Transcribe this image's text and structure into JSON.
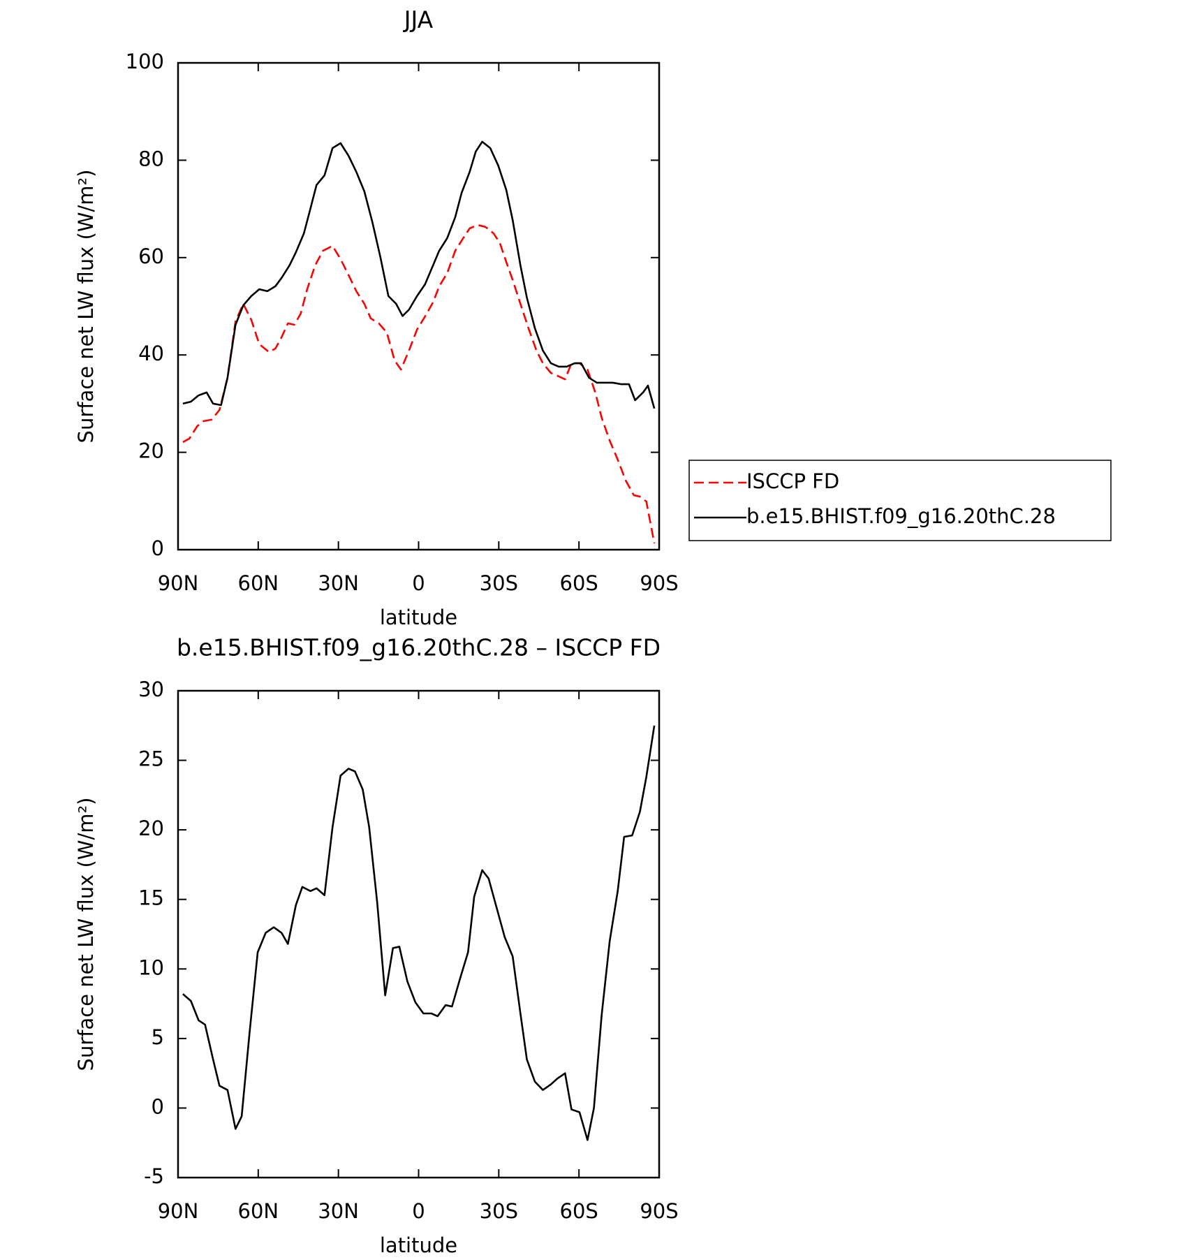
{
  "chart_data": [
    {
      "type": "line",
      "title": "JJA",
      "xlabel": "latitude",
      "ylabel": "Surface net LW flux (W/m²)",
      "xlim": [
        90,
        -90
      ],
      "ylim": [
        0,
        100
      ],
      "xticks": [
        {
          "value": 90,
          "label": "90N"
        },
        {
          "value": 60,
          "label": "60N"
        },
        {
          "value": 30,
          "label": "30N"
        },
        0,
        {
          "value": -30,
          "label": "30S"
        },
        {
          "value": -60,
          "label": "60S"
        },
        {
          "value": -90,
          "label": "90S"
        }
      ],
      "yticks": [
        0,
        20,
        40,
        60,
        80,
        100
      ],
      "legend": "outside right",
      "series": [
        {
          "name": "ISCCP FD",
          "color": "#ff0000",
          "linestyle": "dashed",
          "x": [
            88.2,
            85.8,
            82.8,
            80.5,
            77.5,
            74.5,
            71.5,
            68.5,
            65.6,
            62.6,
            59.6,
            56.0,
            53.6,
            51.3,
            48.9,
            46.5,
            44.1,
            41.7,
            38.7,
            35.8,
            32.2,
            29.2,
            26.2,
            23.3,
            20.3,
            17.9,
            14.9,
            11.9,
            9.0,
            6.6,
            3.6,
            0.6,
            -2.4,
            -5.4,
            -7.7,
            -10.7,
            -13.7,
            -16.7,
            -19.1,
            -22.1,
            -25.0,
            -28.0,
            -30.4,
            -32.8,
            -35.2,
            -38.1,
            -41.1,
            -44.1,
            -46.5,
            -49.5,
            -52.4,
            -54.8,
            -57.2,
            -60.2,
            -63.2,
            -66.1,
            -68.5,
            -71.5,
            -74.5,
            -77.5,
            -80.5,
            -82.8,
            -85.2,
            -88.2
          ],
          "values": [
            22.1,
            22.8,
            25.4,
            26.4,
            26.7,
            28.7,
            35.3,
            46.9,
            50.5,
            47.2,
            42.2,
            40.6,
            41.3,
            43.6,
            46.5,
            46.2,
            48.5,
            53.5,
            58.4,
            61.4,
            62.4,
            59.7,
            56.4,
            53.1,
            50.5,
            47.5,
            46.5,
            44.6,
            38.9,
            37.0,
            40.9,
            45.2,
            47.9,
            50.8,
            54.1,
            56.8,
            61.4,
            64.0,
            66.0,
            66.7,
            66.3,
            65.0,
            63.0,
            59.1,
            55.4,
            50.5,
            45.5,
            40.9,
            38.3,
            36.3,
            35.6,
            35.0,
            38.3,
            38.3,
            37.0,
            32.3,
            27.1,
            22.4,
            18.5,
            14.2,
            11.2,
            10.9,
            9.9,
            1.3
          ]
        },
        {
          "name": "b.e15.BHIST.f09_g16.20thC.28",
          "color": "#000000",
          "linestyle": "solid",
          "x": [
            88.2,
            85.2,
            82.3,
            79.3,
            76.9,
            73.9,
            71.5,
            68.5,
            65.6,
            62.6,
            59.6,
            56.6,
            53.6,
            51.3,
            48.3,
            45.9,
            42.9,
            40.5,
            38.2,
            35.2,
            32.2,
            29.2,
            26.2,
            23.3,
            20.3,
            17.3,
            14.3,
            11.3,
            8.4,
            6.0,
            3.6,
            0.6,
            -2.4,
            -5.4,
            -7.7,
            -10.7,
            -13.7,
            -16.1,
            -19.1,
            -21.4,
            -23.8,
            -26.8,
            -29.8,
            -32.8,
            -35.2,
            -38.1,
            -40.5,
            -43.5,
            -46.5,
            -49.5,
            -52.4,
            -55.4,
            -58.4,
            -60.8,
            -63.8,
            -66.7,
            -69.7,
            -72.7,
            -75.7,
            -78.7,
            -81.0,
            -84.0,
            -85.8,
            -88.2
          ],
          "values": [
            30.0,
            30.4,
            31.7,
            32.3,
            30.0,
            29.7,
            35.3,
            46.2,
            50.2,
            52.1,
            53.5,
            53.1,
            54.1,
            55.8,
            58.4,
            61.1,
            65.0,
            70.0,
            74.9,
            76.9,
            82.5,
            83.5,
            80.9,
            77.6,
            73.6,
            67.3,
            60.1,
            52.1,
            50.5,
            48.0,
            49.3,
            52.1,
            54.5,
            58.4,
            61.4,
            64.0,
            68.3,
            73.3,
            77.6,
            81.8,
            83.8,
            82.5,
            78.9,
            73.9,
            67.7,
            58.4,
            51.8,
            45.5,
            40.9,
            38.3,
            37.6,
            37.6,
            38.3,
            38.3,
            35.3,
            34.3,
            34.3,
            34.3,
            34.0,
            34.0,
            30.7,
            32.3,
            33.7,
            29.0
          ]
        }
      ]
    },
    {
      "type": "line",
      "title": "b.e15.BHIST.f09_g16.20thC.28 – ISCCP FD",
      "xlabel": "latitude",
      "ylabel": "Surface net LW flux (W/m²)",
      "xlim": [
        90,
        -90
      ],
      "ylim": [
        -5,
        30
      ],
      "xticks": [
        {
          "value": 90,
          "label": "90N"
        },
        {
          "value": 60,
          "label": "60N"
        },
        {
          "value": 30,
          "label": "30N"
        },
        0,
        {
          "value": -30,
          "label": "30S"
        },
        {
          "value": -60,
          "label": "60S"
        },
        {
          "value": -90,
          "label": "90S"
        }
      ],
      "yticks": [
        -5,
        0,
        5,
        10,
        15,
        20,
        25,
        30
      ],
      "color": "#000000",
      "x": [
        88.2,
        85.2,
        82.3,
        79.9,
        76.9,
        74.5,
        71.5,
        68.5,
        66.2,
        63.2,
        60.2,
        57.2,
        54.2,
        51.3,
        48.9,
        45.9,
        43.5,
        40.5,
        38.2,
        35.2,
        32.2,
        29.2,
        26.2,
        23.8,
        20.9,
        18.5,
        15.5,
        12.5,
        9.6,
        7.2,
        4.2,
        1.2,
        -1.8,
        -4.8,
        -7.1,
        -10.1,
        -12.5,
        -15.5,
        -18.5,
        -20.8,
        -23.8,
        -26.2,
        -29.2,
        -32.2,
        -35.2,
        -38.1,
        -40.5,
        -43.5,
        -46.5,
        -49.5,
        -51.8,
        -54.8,
        -57.2,
        -60.2,
        -63.2,
        -65.6,
        -68.5,
        -71.5,
        -74.5,
        -76.9,
        -79.9,
        -82.8,
        -85.2,
        -88.2
      ],
      "values": [
        8.2,
        7.7,
        6.3,
        6.0,
        3.5,
        1.6,
        1.3,
        -1.5,
        -0.6,
        5.5,
        11.2,
        12.6,
        13.0,
        12.6,
        11.8,
        14.6,
        15.9,
        15.6,
        15.8,
        15.3,
        20.2,
        23.9,
        24.4,
        24.2,
        22.9,
        20.2,
        14.8,
        8.1,
        11.5,
        11.6,
        9.1,
        7.6,
        6.8,
        6.8,
        6.6,
        7.4,
        7.3,
        9.3,
        11.2,
        15.2,
        17.1,
        16.5,
        14.4,
        12.3,
        10.9,
        6.8,
        3.5,
        1.9,
        1.3,
        1.7,
        2.1,
        2.5,
        -0.1,
        -0.3,
        -2.3,
        0.0,
        6.7,
        12.0,
        15.6,
        19.5,
        19.6,
        21.3,
        23.8,
        27.5
      ]
    }
  ]
}
